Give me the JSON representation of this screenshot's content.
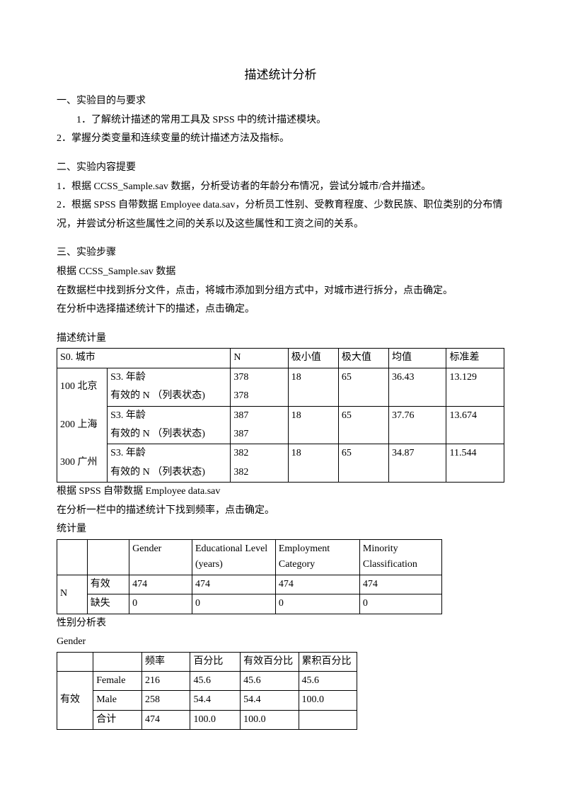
{
  "title": "描述统计分析",
  "section1": {
    "heading": "一、实验目的与要求",
    "item1": "1．了解统计描述的常用工具及 SPSS 中的统计描述模块。",
    "item2": "2．掌握分类变量和连续变量的统计描述方法及指标。"
  },
  "section2": {
    "heading": "二、实验内容提要",
    "item1": "1．根据 CCSS_Sample.sav 数据，分析受访者的年龄分布情况，尝试分城市/合并描述。",
    "item2": "2．根据 SPSS 自带数据 Employee data.sav，分析员工性别、受教育程度、少数民族、职位类别的分布情况，并尝试分析这些属性之间的关系以及这些属性和工资之间的关系。"
  },
  "section3": {
    "heading": "三、实验步骤",
    "line1": "根据 CCSS_Sample.sav 数据",
    "line2": "在数据栏中找到拆分文件，点击，将城市添加到分组方式中，对城市进行拆分，点击确定。",
    "line3": "在分析中选择描述统计下的描述，点击确定。"
  },
  "table1": {
    "caption": "描述统计量",
    "header": [
      "S0. 城市",
      "",
      "N",
      "极小值",
      "极大值",
      "均值",
      "标准差"
    ],
    "rows": [
      {
        "city": "100 北京",
        "stat": "S3. 年龄",
        "n": "378",
        "min": "18",
        "max": "65",
        "mean": "36.43",
        "sd": "13.129"
      },
      {
        "city": "",
        "stat": "有效的 N （列表状态)",
        "n": "378",
        "min": "",
        "max": "",
        "mean": "",
        "sd": ""
      },
      {
        "city": "200 上海",
        "stat": "S3. 年龄",
        "n": "387",
        "min": "18",
        "max": "65",
        "mean": "37.76",
        "sd": "13.674"
      },
      {
        "city": "",
        "stat": "有效的 N （列表状态)",
        "n": "387",
        "min": "",
        "max": "",
        "mean": "",
        "sd": ""
      },
      {
        "city": "300 广州",
        "stat": "S3. 年龄",
        "n": "382",
        "min": "18",
        "max": "65",
        "mean": "34.87",
        "sd": "11.544"
      },
      {
        "city": "",
        "stat": "有效的 N （列表状态)",
        "n": "382",
        "min": "",
        "max": "",
        "mean": "",
        "sd": ""
      }
    ],
    "after1": "根据 SPSS 自带数据 Employee data.sav",
    "after2": "在分析一栏中的描述统计下找到频率，点击确定。"
  },
  "table2": {
    "caption": "统计量",
    "header": [
      "",
      "",
      "Gender",
      "Educational Level (years)",
      "Employment Category",
      "Minority Classification"
    ],
    "rows": [
      {
        "a": "N",
        "b": "有效",
        "c": "474",
        "d": "474",
        "e": "474",
        "f": "474"
      },
      {
        "a": "",
        "b": "缺失",
        "c": "0",
        "d": "0",
        "e": "0",
        "f": "0"
      }
    ]
  },
  "table3": {
    "caption1": "性别分析表",
    "caption2": "Gender",
    "header": [
      "",
      "",
      "频率",
      "百分比",
      "有效百分比",
      "累积百分比"
    ],
    "rows": [
      {
        "a": "",
        "b": "Female",
        "c": "216",
        "d": "45.6",
        "e": "45.6",
        "f": "45.6"
      },
      {
        "a": "有效",
        "b": "Male",
        "c": "258",
        "d": "54.4",
        "e": "54.4",
        "f": "100.0"
      },
      {
        "a": "",
        "b": "合计",
        "c": "474",
        "d": "100.0",
        "e": "100.0",
        "f": ""
      }
    ]
  }
}
